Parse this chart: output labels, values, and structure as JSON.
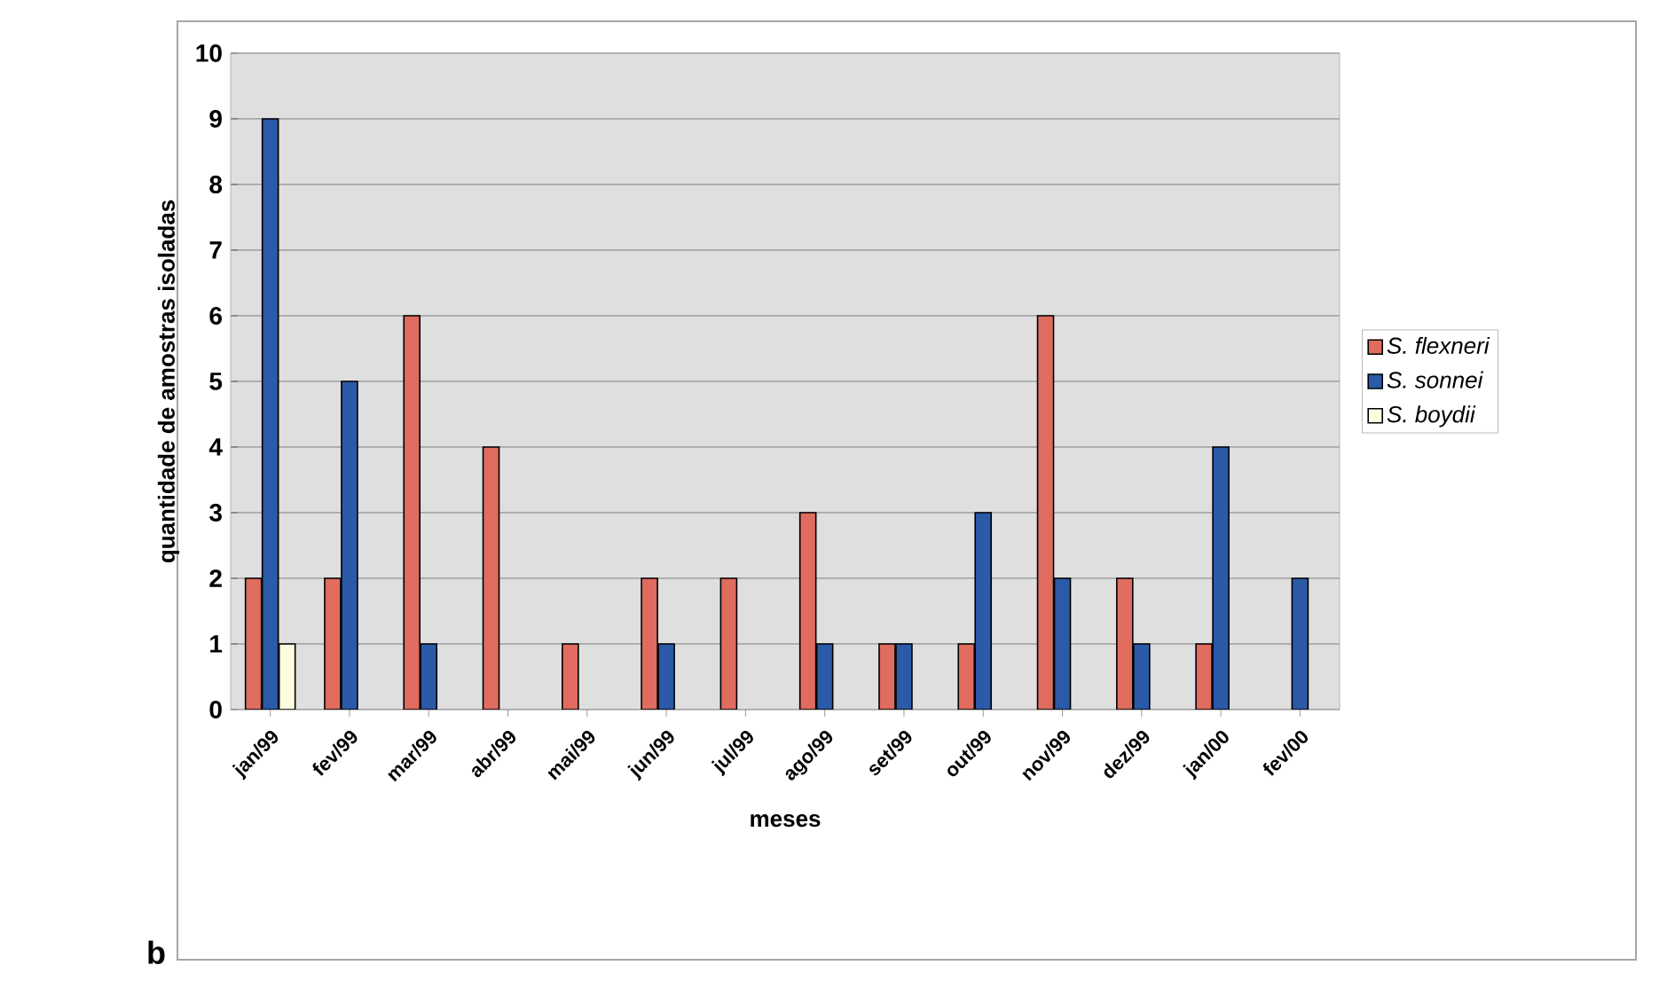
{
  "chart_data": {
    "type": "bar",
    "categories": [
      "jan/99",
      "fev/99",
      "mar/99",
      "abr/99",
      "mai/99",
      "jun/99",
      "jul/99",
      "ago/99",
      "set/99",
      "out/99",
      "nov/99",
      "dez/99",
      "jan/00",
      "fev/00"
    ],
    "series": [
      {
        "name": "S. flexneri",
        "color": "#e06b5f",
        "values": [
          2,
          2,
          6,
          4,
          1,
          2,
          2,
          3,
          1,
          1,
          6,
          2,
          1,
          0
        ]
      },
      {
        "name": "S. sonnei",
        "color": "#2a5aa8",
        "values": [
          9,
          5,
          1,
          0,
          0,
          1,
          0,
          1,
          1,
          3,
          2,
          1,
          4,
          2
        ]
      },
      {
        "name": "S. boydii",
        "color": "#fffde0",
        "values": [
          1,
          0,
          0,
          0,
          0,
          0,
          0,
          0,
          0,
          0,
          0,
          0,
          0,
          0
        ]
      }
    ],
    "xlabel": "meses",
    "ylabel": "quantidade de amostras isoladas",
    "ylim": [
      0,
      10
    ],
    "yticks": [
      0,
      1,
      2,
      3,
      4,
      5,
      6,
      7,
      8,
      9,
      10
    ],
    "grid": "y",
    "legend": "right",
    "annotations": [
      "b"
    ]
  }
}
